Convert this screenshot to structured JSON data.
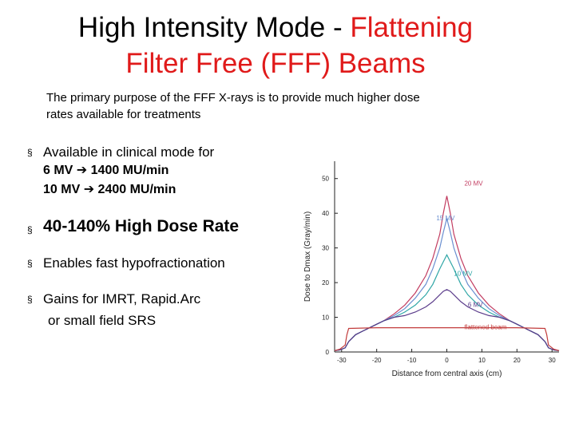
{
  "slide": {
    "title_part1": "High Intensity Mode - ",
    "title_accent_line1": "Flattening",
    "title_accent_line2": "Filter Free (FFF) Beams",
    "intro_line1": "The primary purpose of the FFF X-rays is to provide much higher dose",
    "intro_line2": "rates available for treatments",
    "bullets": [
      {
        "text": "Available in clinical mode for",
        "sub": [
          "6 MV ➔ 1400 MU/min",
          "10 MV ➔ 2400 MU/min"
        ]
      },
      {
        "text": "40-140% High Dose Rate"
      },
      {
        "text": "Enables fast hypofractionation"
      },
      {
        "text": "Gains for IMRT, Rapid.Arc",
        "cont": "or small field SRS"
      }
    ],
    "bullet_mark": "§"
  },
  "chart_data": {
    "type": "line",
    "xlabel": "Distance from central axis (cm)",
    "ylabel": "Dose to Dmax (Gray/min)",
    "xlim": [
      -32,
      32
    ],
    "ylim": [
      0,
      55
    ],
    "xticks": [
      -30,
      -20,
      -10,
      0,
      10,
      20,
      30
    ],
    "yticks": [
      0,
      10,
      20,
      30,
      40,
      50
    ],
    "series": [
      {
        "name": "20 MV",
        "color": "#c23c60",
        "x": [
          -32,
          -30.5,
          -29,
          -28,
          -26,
          -24,
          -22,
          -20,
          -18,
          -15,
          -12,
          -9,
          -6,
          -4,
          -2,
          -1,
          0,
          1,
          2,
          4,
          6,
          9,
          12,
          15,
          18,
          20,
          22,
          24,
          26,
          28,
          29,
          30.5,
          32
        ],
        "y": [
          0.4,
          0.6,
          1.2,
          3,
          5,
          6,
          7,
          8,
          9,
          11,
          13.5,
          17,
          22,
          27,
          34,
          40,
          45,
          40,
          34,
          27,
          22,
          17,
          13.5,
          11,
          9,
          8,
          7,
          6,
          5,
          3,
          1.2,
          0.6,
          0.4
        ]
      },
      {
        "name": "15 MV",
        "color": "#6a8fd0",
        "x": [
          -32,
          -30.5,
          -29,
          -28,
          -26,
          -24,
          -22,
          -20,
          -18,
          -15,
          -12,
          -9,
          -6,
          -4,
          -2,
          -1,
          0,
          1,
          2,
          4,
          6,
          9,
          12,
          15,
          18,
          20,
          22,
          24,
          26,
          28,
          29,
          30.5,
          32
        ],
        "y": [
          0.4,
          0.6,
          1.2,
          3,
          5,
          6,
          7,
          8,
          9,
          10.5,
          12.5,
          15.5,
          19.5,
          24,
          30,
          34.5,
          38.5,
          34.5,
          30,
          24,
          19.5,
          15.5,
          12.5,
          10.5,
          9,
          8,
          7,
          6,
          5,
          3,
          1.2,
          0.6,
          0.4
        ]
      },
      {
        "name": "10 MV",
        "color": "#2fa6a6",
        "x": [
          -32,
          -30.5,
          -29,
          -28,
          -26,
          -24,
          -22,
          -20,
          -18,
          -15,
          -12,
          -9,
          -6,
          -4,
          -2,
          -1,
          0,
          1,
          2,
          4,
          6,
          9,
          12,
          15,
          18,
          20,
          22,
          24,
          26,
          28,
          29,
          30.5,
          32
        ],
        "y": [
          0.4,
          0.6,
          1.2,
          3,
          5,
          6,
          7,
          8,
          9,
          10,
          11.5,
          13.5,
          16.5,
          19.5,
          24,
          26,
          28,
          26,
          24,
          19.5,
          16.5,
          13.5,
          11.5,
          10,
          9,
          8,
          7,
          6,
          5,
          3,
          1.2,
          0.6,
          0.4
        ]
      },
      {
        "name": "6 MV",
        "color": "#5a3b8a",
        "x": [
          -32,
          -30.5,
          -29,
          -28,
          -26,
          -24,
          -22,
          -20,
          -18,
          -15,
          -12,
          -9,
          -6,
          -4,
          -2,
          -1,
          0,
          1,
          2,
          4,
          6,
          9,
          12,
          15,
          18,
          20,
          22,
          24,
          26,
          28,
          29,
          30.5,
          32
        ],
        "y": [
          0.4,
          0.6,
          1.2,
          3,
          5,
          6,
          7,
          8,
          9,
          10,
          10.5,
          11.5,
          13,
          14.5,
          16.5,
          17.5,
          18,
          17.5,
          16.5,
          14.5,
          13,
          11.5,
          10.5,
          10,
          9,
          8,
          7,
          6,
          5,
          3,
          1.2,
          0.6,
          0.4
        ]
      },
      {
        "name": "flattened beam",
        "color": "#c23c3c",
        "x": [
          -32,
          -30.5,
          -29,
          -28.5,
          -28,
          -20,
          -10,
          0,
          10,
          20,
          28,
          28.5,
          29,
          30.5,
          32
        ],
        "y": [
          0.4,
          0.8,
          2,
          5,
          6.8,
          7,
          7,
          7,
          7,
          7,
          6.8,
          5,
          2,
          0.8,
          0.4
        ]
      }
    ],
    "labels": [
      {
        "text": "20 MV",
        "x": 5,
        "y": 48,
        "color": "#c23c60"
      },
      {
        "text": "15 MV",
        "x": -3,
        "y": 38,
        "color": "#6a8fd0"
      },
      {
        "text": "10 MV",
        "x": 2,
        "y": 22,
        "color": "#2fa6a6"
      },
      {
        "text": "6 MV",
        "x": 6,
        "y": 13,
        "color": "#5a3b8a"
      },
      {
        "text": "flattened beam",
        "x": 5,
        "y": 6.6,
        "color": "#c23c3c"
      }
    ]
  }
}
